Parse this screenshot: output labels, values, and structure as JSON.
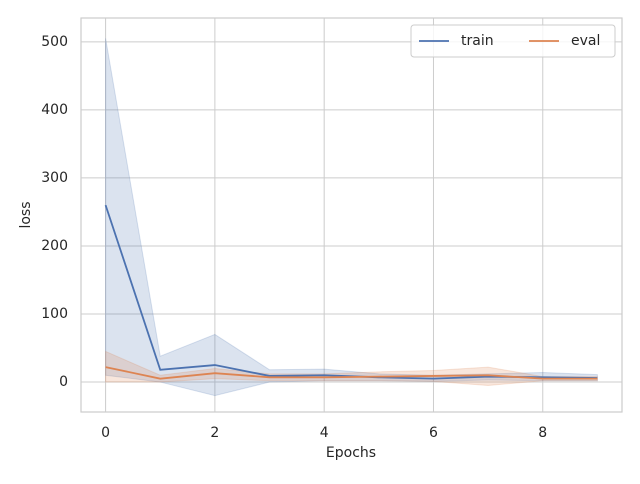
{
  "chart_data": {
    "type": "line",
    "xlabel": "Epochs",
    "ylabel": "loss",
    "x": [
      0,
      1,
      2,
      3,
      4,
      5,
      6,
      7,
      8,
      9
    ],
    "series": [
      {
        "name": "train",
        "color": "#4c72b0",
        "values": [
          260,
          18,
          25,
          9,
          10,
          7,
          5,
          8,
          7,
          6
        ],
        "upper": [
          505,
          38,
          70,
          18,
          19,
          12,
          10,
          12,
          14,
          11
        ],
        "lower": [
          10,
          0,
          -20,
          0,
          2,
          2,
          1,
          3,
          2,
          2
        ]
      },
      {
        "name": "eval",
        "color": "#dd8452",
        "values": [
          22,
          5,
          13,
          7,
          7,
          8,
          9,
          10,
          5,
          5
        ],
        "upper": [
          45,
          10,
          20,
          12,
          12,
          15,
          17,
          22,
          8,
          8
        ],
        "lower": [
          0,
          0,
          5,
          2,
          2,
          2,
          1,
          -5,
          2,
          2
        ]
      }
    ],
    "xlim": [
      -0.45,
      9.45
    ],
    "xticks": [
      0,
      2,
      4,
      6,
      8
    ],
    "ylim": [
      -44,
      535
    ],
    "yticks": [
      0,
      100,
      200,
      300,
      400,
      500
    ],
    "grid": true,
    "legend": "upper right"
  }
}
